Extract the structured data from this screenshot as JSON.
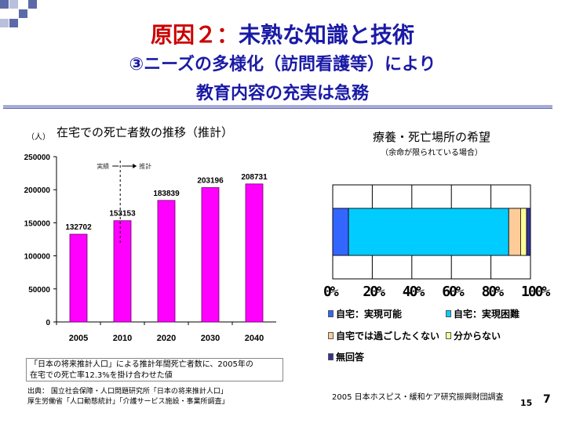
{
  "header": {
    "title_red": "原因２：",
    "title_blue": "未熟な知識と技術",
    "line2": "③ニーズの多様化（訪問看護等）により",
    "line3": "教育内容の充実は急務"
  },
  "left_chart": {
    "unit_label": "（人）",
    "title": "在宅での死亡者数の推移（推計）",
    "actual_label": "実績",
    "projected_label": "推計",
    "note_line1": "「日本の将来推計人口」による推計年間死亡者数に、2005年の",
    "note_line2": "在宅での死亡率12.3%を掛け合わせた値",
    "source_line1": "出典：  国立社会保障・人口問題研究所「日本の将来推計人口」",
    "source_line2": "           厚生労働省「人口動態統計」「介護サービス施設・事業所調査」"
  },
  "right_chart": {
    "title": "療養・死亡場所の希望",
    "subtitle": "（余命が限られている場合）",
    "legend": [
      {
        "label": "自宅：実現可能",
        "color": "#3366ff"
      },
      {
        "label": "自宅：実現困難",
        "color": "#00ccff"
      },
      {
        "label": "自宅では過ごしたくない",
        "color": "#ffcc99"
      },
      {
        "label": "分からない",
        "color": "#ffff99"
      },
      {
        "label": "無回答",
        "color": "#333399"
      }
    ],
    "credit": "2005  日本ホスピス・緩和ケア研究振興財団調査"
  },
  "page_numbers": {
    "small": "15",
    "large": "7"
  },
  "chart_data": [
    {
      "type": "bar",
      "title": "在宅での死亡者数の推移（推計）",
      "ylabel": "（人）",
      "categories": [
        "2005",
        "2010",
        "2020",
        "2030",
        "2040"
      ],
      "values": [
        132702,
        153153,
        183839,
        203196,
        208731
      ],
      "data_labels": [
        "132702",
        "153153",
        "183839",
        "203196",
        "208731"
      ],
      "ylim": [
        0,
        250000
      ],
      "yticks": [
        "0",
        "50000",
        "100000",
        "150000",
        "200000",
        "250000"
      ],
      "color": "#ff00ff",
      "grid": false
    },
    {
      "type": "bar",
      "orientation": "horizontal-stacked",
      "title": "療養・死亡場所の希望",
      "xlim": [
        0,
        100
      ],
      "xticks": [
        "0%",
        "20%",
        "40%",
        "60%",
        "80%",
        "100%"
      ],
      "series": [
        {
          "name": "自宅：実現可能",
          "values": [
            8
          ]
        },
        {
          "name": "自宅：実現困難",
          "values": [
            81
          ]
        },
        {
          "name": "自宅では過ごしたくない",
          "values": [
            6
          ]
        },
        {
          "name": "分からない",
          "values": [
            3
          ]
        },
        {
          "name": "無回答",
          "values": [
            2
          ]
        }
      ],
      "colors": [
        "#3366ff",
        "#00ccff",
        "#ffcc99",
        "#ffff99",
        "#333399"
      ],
      "grid": true
    }
  ]
}
